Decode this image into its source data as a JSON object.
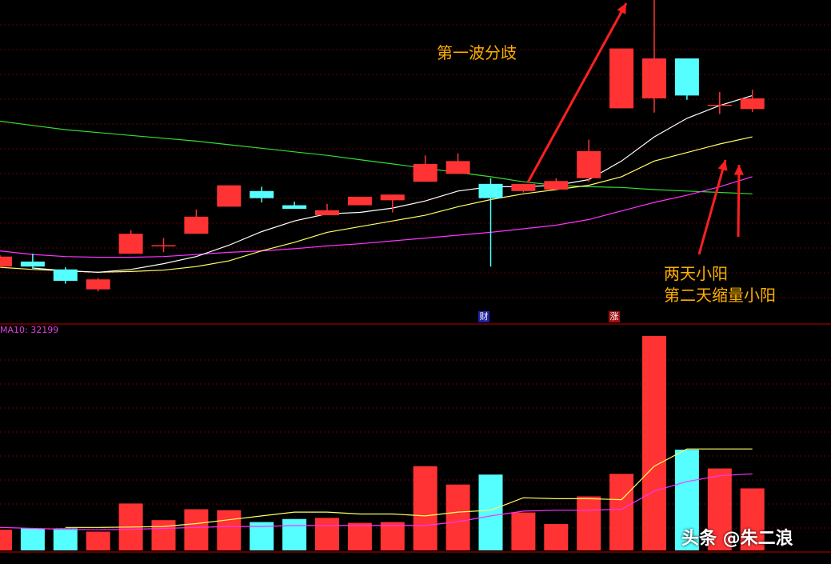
{
  "chart_data": {
    "type": "candlestick",
    "annotations": [
      "第一波分歧",
      "两天小阳",
      "第二天缩量小阳"
    ],
    "markers": [
      "财",
      "涨"
    ],
    "volume_legend": "MA10: 32199",
    "watermark": "头条 @朱二浪",
    "colors": {
      "up": "#ff3333",
      "down": "#55ffff",
      "ma5": "#ffffff",
      "ma10": "#ffff66",
      "ma20": "#ff33ff",
      "ma60": "#33dd33",
      "vol_ma5": "#ffff66",
      "vol_ma10": "#ff33ff",
      "arrow": "#ff2020",
      "text": "#ffb000"
    },
    "candles": [
      {
        "o": 0.8,
        "c": 0.66,
        "h": 0.82,
        "l": 0.64,
        "color": "up"
      },
      {
        "o": 0.73,
        "c": 0.66,
        "h": 0.84,
        "l": 0.63,
        "color": "down"
      },
      {
        "o": 0.62,
        "c": 0.46,
        "h": 0.65,
        "l": 0.42,
        "color": "down"
      },
      {
        "o": 0.48,
        "c": 0.34,
        "h": 0.5,
        "l": 0.31,
        "color": "up"
      },
      {
        "o": 0.84,
        "c": 1.12,
        "h": 1.17,
        "l": 0.84,
        "color": "up"
      },
      {
        "o": 0.96,
        "c": 0.96,
        "h": 1.06,
        "l": 0.86,
        "color": "up"
      },
      {
        "o": 1.12,
        "c": 1.36,
        "h": 1.46,
        "l": 1.12,
        "color": "up"
      },
      {
        "o": 1.5,
        "c": 1.8,
        "h": 1.8,
        "l": 1.5,
        "color": "up"
      },
      {
        "o": 1.72,
        "c": 1.62,
        "h": 1.78,
        "l": 1.56,
        "color": "down"
      },
      {
        "o": 1.52,
        "c": 1.47,
        "h": 1.57,
        "l": 1.47,
        "color": "down"
      },
      {
        "o": 1.38,
        "c": 1.45,
        "h": 1.54,
        "l": 1.38,
        "color": "up"
      },
      {
        "o": 1.52,
        "c": 1.64,
        "h": 1.64,
        "l": 1.52,
        "color": "up"
      },
      {
        "o": 1.59,
        "c": 1.67,
        "h": 1.67,
        "l": 1.42,
        "color": "up"
      },
      {
        "o": 1.85,
        "c": 2.1,
        "h": 2.22,
        "l": 1.85,
        "color": "up"
      },
      {
        "o": 1.96,
        "c": 2.14,
        "h": 2.25,
        "l": 1.96,
        "color": "up"
      },
      {
        "o": 1.82,
        "c": 1.62,
        "h": 1.9,
        "l": 0.66,
        "color": "down"
      },
      {
        "o": 1.72,
        "c": 1.82,
        "h": 1.82,
        "l": 1.7,
        "color": "up"
      },
      {
        "o": 1.74,
        "c": 1.86,
        "h": 1.9,
        "l": 1.74,
        "color": "up"
      },
      {
        "o": 1.9,
        "c": 2.28,
        "h": 2.44,
        "l": 1.85,
        "color": "up"
      },
      {
        "o": 2.88,
        "c": 3.72,
        "h": 3.72,
        "l": 2.88,
        "color": "up"
      },
      {
        "o": 3.02,
        "c": 3.58,
        "h": 4.4,
        "l": 2.82,
        "color": "up"
      },
      {
        "o": 3.58,
        "c": 3.06,
        "h": 3.58,
        "l": 3.0,
        "color": "down"
      },
      {
        "o": 2.93,
        "c": 2.93,
        "h": 3.11,
        "l": 2.8,
        "color": "up"
      },
      {
        "o": 2.87,
        "c": 3.02,
        "h": 3.14,
        "l": 2.83,
        "color": "up"
      }
    ],
    "ma5": [
      null,
      0.64,
      0.6,
      0.58,
      0.62,
      0.7,
      0.8,
      0.96,
      1.15,
      1.3,
      1.4,
      1.42,
      1.48,
      1.58,
      1.72,
      1.78,
      1.78,
      1.8,
      1.88,
      2.14,
      2.48,
      2.74,
      2.92,
      3.06
    ],
    "ma10": [
      0.65,
      0.62,
      0.6,
      0.58,
      0.59,
      0.61,
      0.66,
      0.74,
      0.88,
      1.0,
      1.14,
      1.22,
      1.3,
      1.38,
      1.5,
      1.6,
      1.68,
      1.74,
      1.8,
      1.92,
      2.14,
      2.26,
      2.38,
      2.48
    ],
    "ma20": [
      0.88,
      0.83,
      0.8,
      0.79,
      0.79,
      0.8,
      0.83,
      0.86,
      0.88,
      0.91,
      0.95,
      0.98,
      1.02,
      1.06,
      1.1,
      1.14,
      1.19,
      1.24,
      1.32,
      1.44,
      1.56,
      1.66,
      1.78,
      1.92
    ],
    "ma60": [
      2.7,
      2.64,
      2.58,
      2.54,
      2.5,
      2.46,
      2.42,
      2.37,
      2.32,
      2.27,
      2.22,
      2.16,
      2.1,
      2.04,
      1.98,
      1.92,
      1.85,
      1.8,
      1.78,
      1.77,
      1.74,
      1.72,
      1.7,
      1.68
    ],
    "volume": [
      1.08,
      1.15,
      1.15,
      0.98,
      2.45,
      1.58,
      2.15,
      2.1,
      1.48,
      1.64,
      1.7,
      1.44,
      1.48,
      4.4,
      3.44,
      3.96,
      1.98,
      1.38,
      2.82,
      4.0,
      11.2,
      5.26,
      4.28,
      3.24
    ],
    "vol_ma5": [
      null,
      null,
      1.2,
      1.2,
      1.22,
      1.25,
      1.4,
      1.6,
      1.8,
      2.0,
      2.0,
      1.9,
      1.9,
      1.8,
      2.0,
      2.1,
      2.75,
      2.7,
      2.7,
      2.65,
      4.4,
      5.3,
      5.3,
      5.3
    ],
    "vol_ma10": [
      1.2,
      1.15,
      1.1,
      1.08,
      1.1,
      1.15,
      1.2,
      1.25,
      1.25,
      1.3,
      1.3,
      1.3,
      1.3,
      1.3,
      1.5,
      1.8,
      2.05,
      2.1,
      2.1,
      2.15,
      3.1,
      3.6,
      3.9,
      4.0
    ]
  }
}
